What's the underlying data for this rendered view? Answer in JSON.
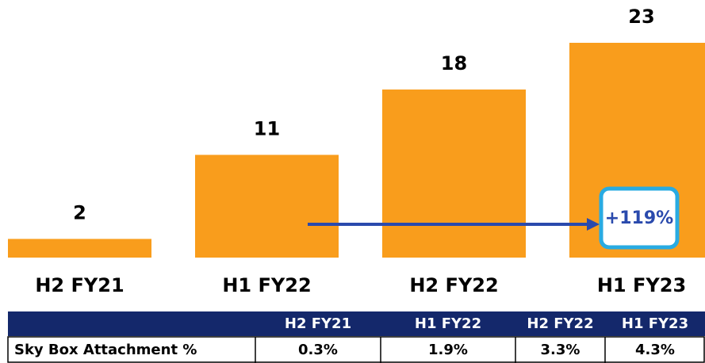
{
  "chart_data": {
    "type": "bar",
    "categories": [
      "H2 FY21",
      "H1 FY22",
      "H2 FY22",
      "H1 FY23"
    ],
    "values": [
      2,
      11,
      18,
      23
    ],
    "color": "#f99d1c",
    "annotation": "+119%"
  },
  "table": {
    "header": [
      "H2 FY21",
      "H1 FY22",
      "H2 FY22",
      "H1 FY23"
    ],
    "rows": [
      [
        "Sky Box Attachment %",
        "0.3%",
        "1.9%",
        "3.3%",
        "4.3%"
      ]
    ]
  }
}
